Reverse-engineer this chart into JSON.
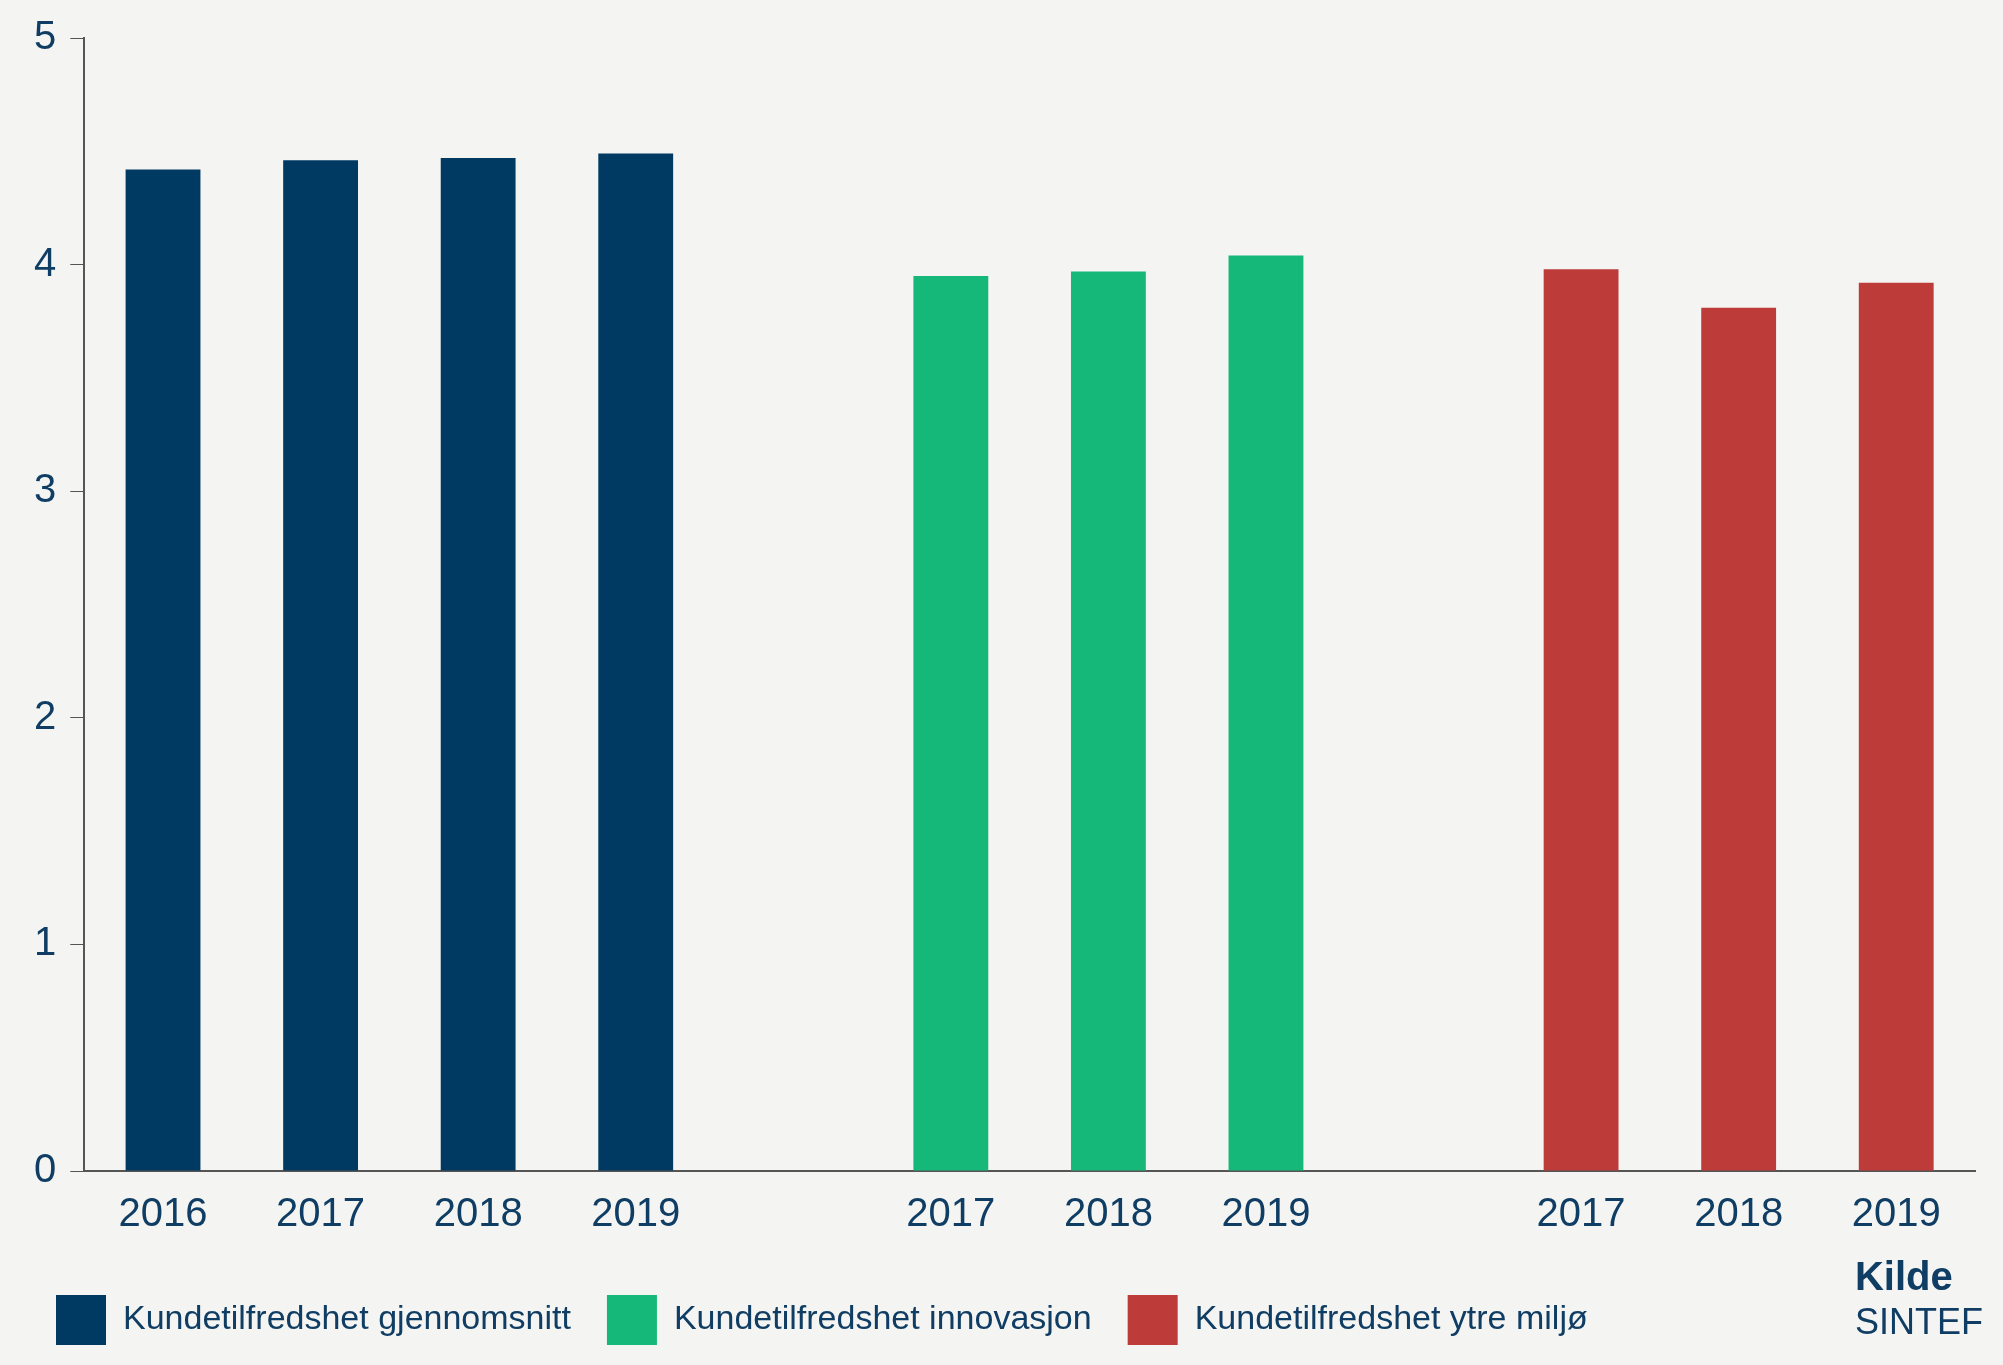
{
  "chart_data": {
    "type": "bar",
    "categories": [
      "2016",
      "2017",
      "2018",
      "2019",
      null,
      "2017",
      "2018",
      "2019",
      null,
      "2017",
      "2018",
      "2019"
    ],
    "series": [
      {
        "name": "Kundetilfredshet gjennomsnitt",
        "color": "#003a63",
        "values": [
          4.42,
          4.46,
          4.47,
          4.49,
          null,
          null,
          null,
          null,
          null,
          null,
          null,
          null
        ]
      },
      {
        "name": "Kundetilfredshet innovasjon",
        "color": "#16b87a",
        "values": [
          null,
          null,
          null,
          null,
          null,
          3.95,
          3.97,
          4.04,
          null,
          null,
          null,
          null
        ]
      },
      {
        "name": "Kundetilfredshet ytre miljø",
        "color": "#bd3c3a",
        "values": [
          null,
          null,
          null,
          null,
          null,
          null,
          null,
          null,
          null,
          3.98,
          3.81,
          3.92
        ]
      }
    ],
    "ylim": [
      0,
      5
    ],
    "yticks": [
      0,
      1,
      2,
      3,
      4,
      5
    ],
    "grid": false,
    "legend": "bottom",
    "annotations": [
      "Kilde",
      "SINTEF"
    ]
  }
}
